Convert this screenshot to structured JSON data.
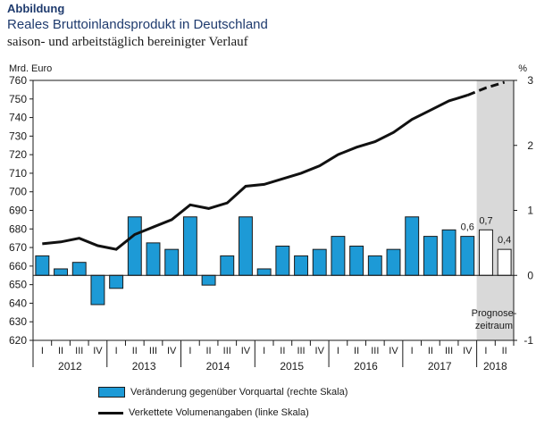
{
  "header": {
    "label": "Abbildung",
    "title": "Reales Bruttoinlandsprodukt in Deutschland",
    "subtitle": "saison- und arbeitstäglich bereinigter Verlauf"
  },
  "legend": {
    "bars": "Veränderung gegenüber Vorquartal (rechte Skala)",
    "line": "Verkettete Volumenangaben (linke Skala)"
  },
  "colors": {
    "bar": "#1d9ad6",
    "forecast_bar": "#ffffff",
    "forecast_band": "#d9d9d9",
    "line": "#111111"
  },
  "chart_data": {
    "type": "bar+line",
    "left_axis": {
      "label": "Mrd. Euro",
      "range": [
        620,
        760
      ],
      "ticks": [
        "620",
        "630",
        "640",
        "650",
        "660",
        "670",
        "680",
        "690",
        "700",
        "710",
        "720",
        "730",
        "740",
        "750",
        "760"
      ]
    },
    "right_axis": {
      "label": "%",
      "range": [
        -1,
        3
      ],
      "ticks": [
        "-1",
        "0",
        "1",
        "2",
        "3"
      ]
    },
    "quarters": [
      "I",
      "II",
      "III",
      "IV",
      "I",
      "II",
      "III",
      "IV",
      "I",
      "II",
      "III",
      "IV",
      "I",
      "II",
      "III",
      "IV",
      "I",
      "II",
      "III",
      "IV",
      "I",
      "II",
      "III",
      "IV",
      "I",
      "II"
    ],
    "years": [
      "2012",
      "2013",
      "2014",
      "2015",
      "2016",
      "2017",
      "2018"
    ],
    "forecast_start_index": 24,
    "forecast_label": [
      "Prognose-",
      "zeitraum"
    ],
    "series": [
      {
        "name": "Veränderung gegenüber Vorquartal (rechte Skala)",
        "type": "bar",
        "values": [
          0.3,
          0.1,
          0.2,
          -0.45,
          -0.2,
          0.9,
          0.5,
          0.4,
          0.9,
          -0.15,
          0.3,
          0.9,
          0.1,
          0.45,
          0.3,
          0.4,
          0.6,
          0.45,
          0.3,
          0.4,
          0.9,
          0.6,
          0.7,
          0.6,
          0.7,
          0.4
        ],
        "data_labels": {
          "23": "0,6",
          "24": "0,7",
          "25": "0,4"
        }
      },
      {
        "name": "Verkettete Volumenangaben (linke Skala)",
        "type": "line",
        "values": [
          672,
          673,
          675,
          671,
          669,
          677,
          681,
          685,
          693,
          691,
          694,
          703,
          704,
          707,
          710,
          714,
          720,
          724,
          727,
          732,
          739,
          744,
          749,
          752,
          756,
          759
        ]
      }
    ]
  }
}
